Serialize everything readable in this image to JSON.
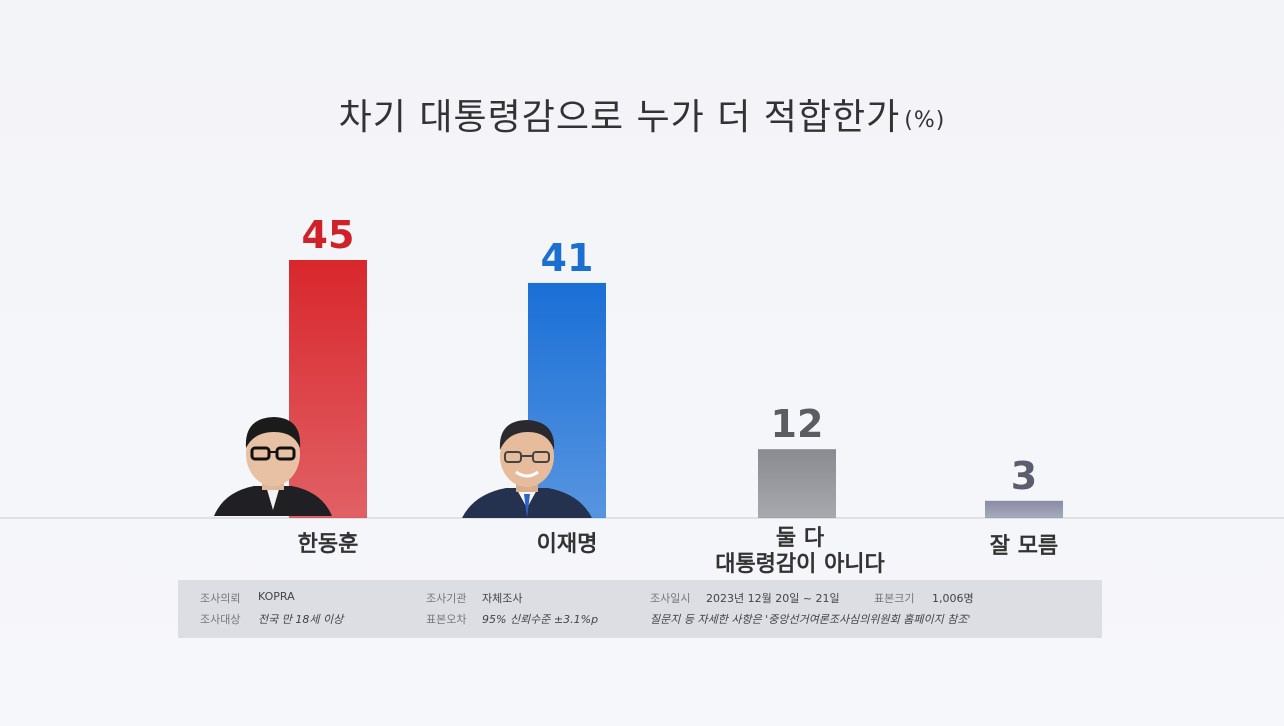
{
  "title": "차기 대통령감으로 누가 더 적합한가",
  "title_unit": "(%)",
  "chart_data": {
    "type": "bar",
    "title": "차기 대통령감으로 누가 더 적합한가",
    "unit": "(%)",
    "categories": [
      "한동훈",
      "이재명",
      "둘 다 대통령감이 아니다",
      "잘 모름"
    ],
    "category_lines": [
      [
        "한동훈"
      ],
      [
        "이재명"
      ],
      [
        "둘 다",
        "대통령감이 아니다"
      ],
      [
        "잘 모름"
      ]
    ],
    "values": [
      45,
      41,
      12,
      3
    ],
    "value_labels": [
      "45",
      "41",
      "12",
      "3"
    ],
    "colors": [
      "#d8272c",
      "#1a6fd6",
      "#8a8b90",
      "#8a8ca6"
    ],
    "label_colors": [
      "#d02028",
      "#1a6fd0",
      "#5c5d63",
      "#5c5d6e"
    ],
    "ylim": [
      0,
      45
    ]
  },
  "info": {
    "client_label": "조사의뢰",
    "client_value": "KOPRA",
    "target_label": "조사대상",
    "target_value": "전국 만 18세 이상",
    "agency_label": "조사기관",
    "agency_value": "자체조사",
    "error_label": "표본오차",
    "error_value": "95% 신뢰수준 ±3.1%p",
    "date_label": "조사일시",
    "date_value": "2023년 12월 20일 ~ 21일",
    "sample_label": "표본크기",
    "sample_value": "1,006명",
    "note": "질문지 등 자세한 사항은 '중앙선거여론조사심의위원회 홈페이지 참조'"
  }
}
